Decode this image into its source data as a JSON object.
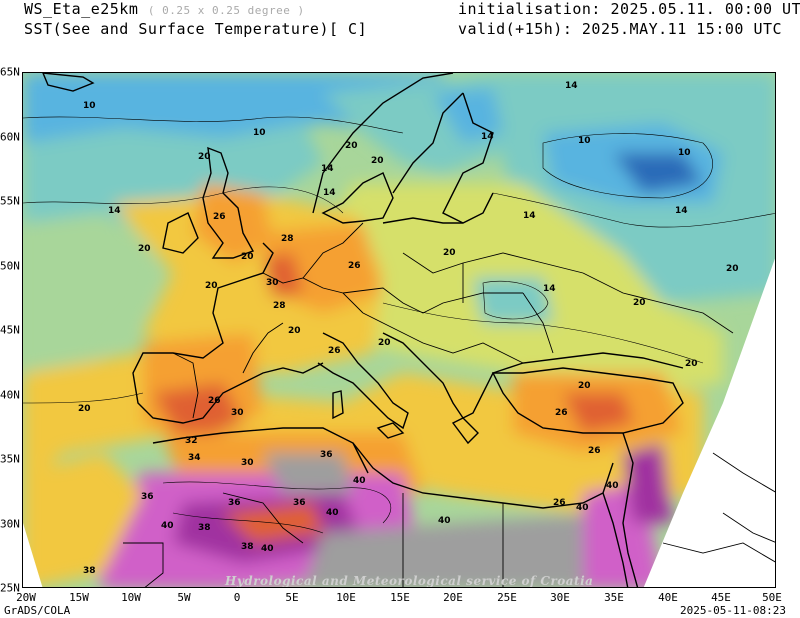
{
  "header": {
    "model": "WS_Eta_e25km",
    "resolution": "( 0.25 x 0.25 degree )",
    "variable": "SST(See and Surface Temperature)[ C]",
    "initialisation": "initialisation: 2025.05.11. 00:00 UTC",
    "valid": "valid(+15h): 2025.MAY.11 15:00 UTC"
  },
  "map": {
    "colors": {
      "ocean_cold": "#59b4e0",
      "ocean_cool": "#7ccbc4",
      "ocean_mild": "#a8d69a",
      "land_mild": "#d6e06a",
      "land_warm": "#f2c840",
      "land_hot": "#f5a030",
      "land_very_hot": "#e06030",
      "land_extreme": "#c83020",
      "desert_hot": "#d060c8",
      "desert_extreme": "#a030a0",
      "no_data": "#9e9e9e",
      "cold_low": "#3c8ac8",
      "cold_very_low": "#2a6ab8"
    },
    "watermark": "Hydrological and Meteorological service of Croatia",
    "contour_labels": [
      "10",
      "10",
      "10",
      "10",
      "14",
      "14",
      "14",
      "14",
      "14",
      "14",
      "14",
      "14",
      "20",
      "20",
      "20",
      "20",
      "20",
      "20",
      "20",
      "20",
      "20",
      "20",
      "20",
      "20",
      "20",
      "20",
      "26",
      "26",
      "26",
      "26",
      "26",
      "26",
      "26",
      "28",
      "28",
      "30",
      "30",
      "30",
      "32",
      "34",
      "36",
      "36",
      "36",
      "36",
      "38",
      "38",
      "38",
      "40",
      "40",
      "40",
      "40",
      "40",
      "40",
      "40"
    ]
  },
  "axes": {
    "x_ticks": [
      "20W",
      "15W",
      "10W",
      "5W",
      "0",
      "5E",
      "10E",
      "15E",
      "20E",
      "25E",
      "30E",
      "35E",
      "40E",
      "45E",
      "50E"
    ],
    "y_ticks": [
      "65N",
      "60N",
      "55N",
      "50N",
      "45N",
      "40N",
      "35N",
      "30N",
      "25N"
    ]
  },
  "footer": {
    "software": "GrADS/COLA",
    "timestamp": "2025-05-11-08:23"
  }
}
